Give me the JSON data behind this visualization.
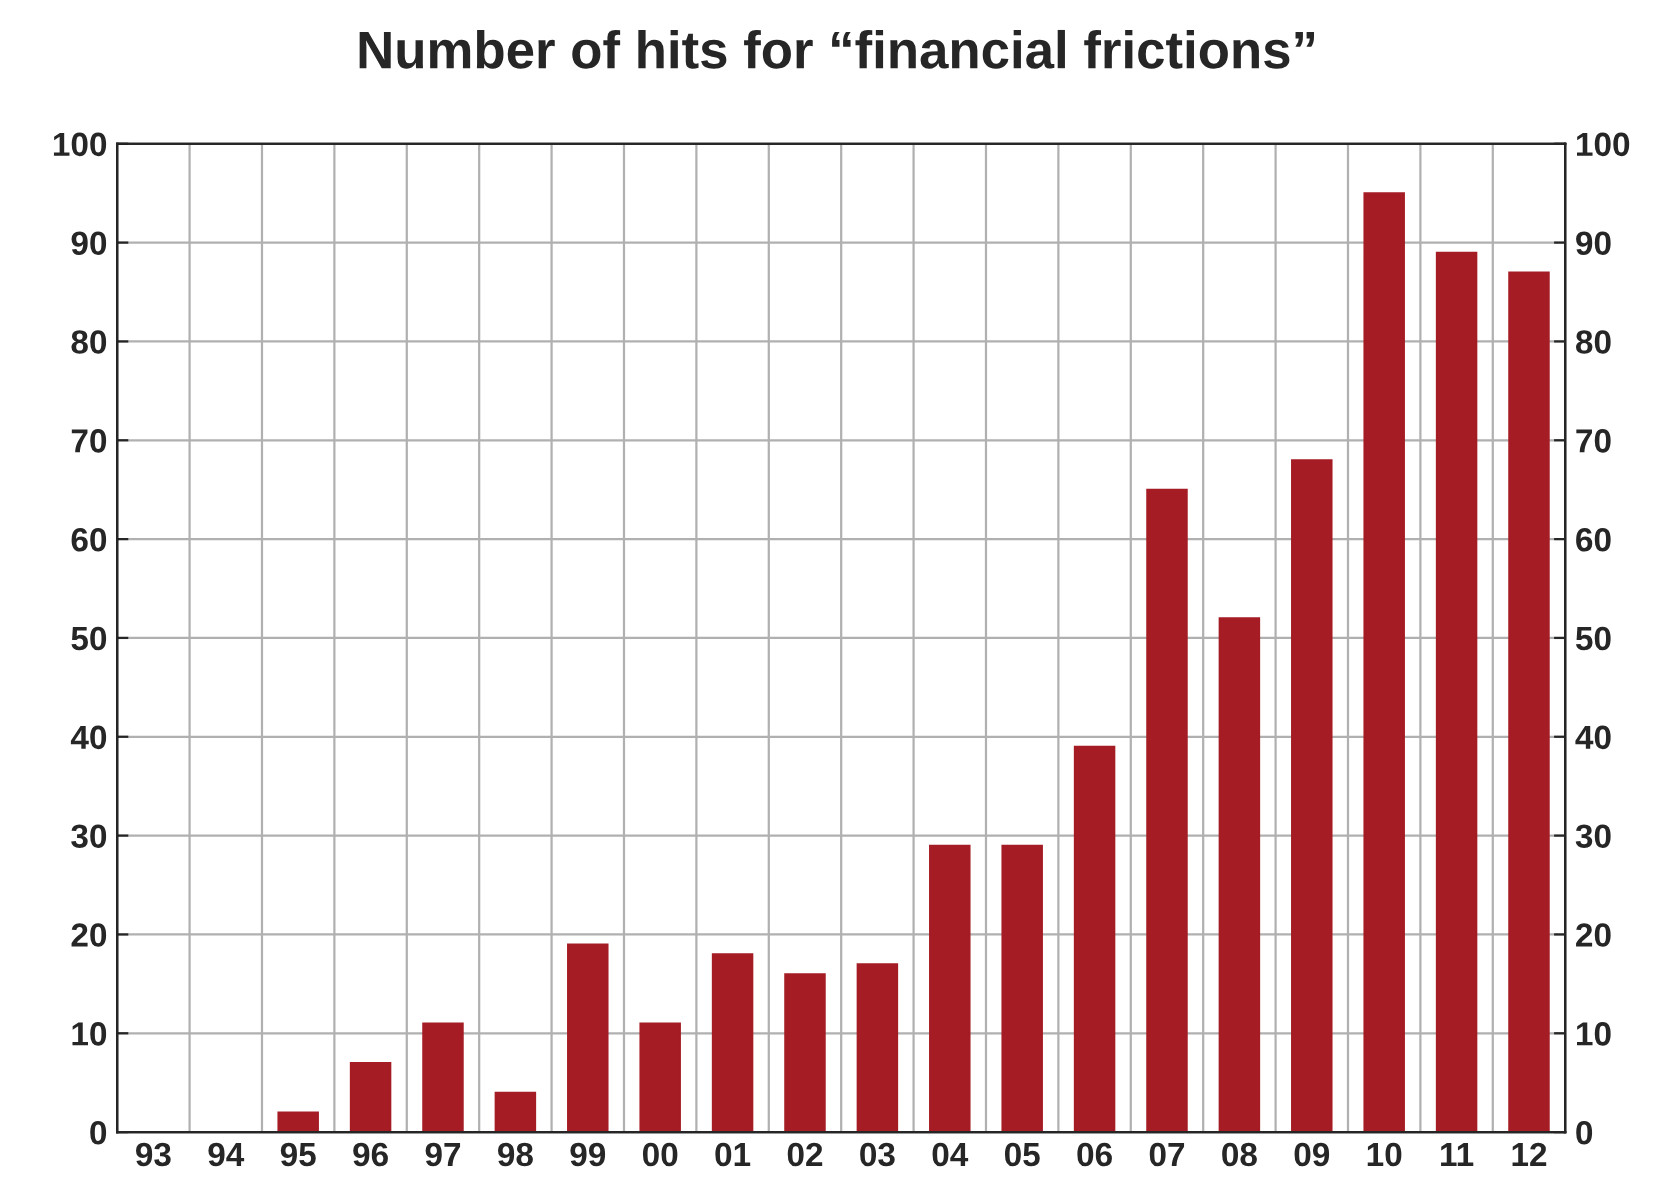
{
  "chart_data": {
    "type": "bar",
    "title": "Number of hits for “financial frictions”",
    "categories": [
      "93",
      "94",
      "95",
      "96",
      "97",
      "98",
      "99",
      "00",
      "01",
      "02",
      "03",
      "04",
      "05",
      "06",
      "07",
      "08",
      "09",
      "10",
      "11",
      "12"
    ],
    "series": [
      {
        "color": "#a51c24",
        "values": [
          0,
          0,
          2,
          7,
          11,
          4,
          19,
          11,
          18,
          16,
          17,
          29,
          29,
          39,
          65,
          52,
          68,
          95,
          89,
          87
        ]
      }
    ],
    "ylim": [
      0,
      100
    ],
    "yticks": [
      0,
      10,
      20,
      30,
      40,
      50,
      60,
      70,
      80,
      90,
      100
    ],
    "y2lim": [
      0,
      100
    ],
    "y2ticks": [
      0,
      10,
      20,
      30,
      40,
      50,
      60,
      70,
      80,
      90,
      100
    ],
    "grid": true,
    "legend": false
  }
}
